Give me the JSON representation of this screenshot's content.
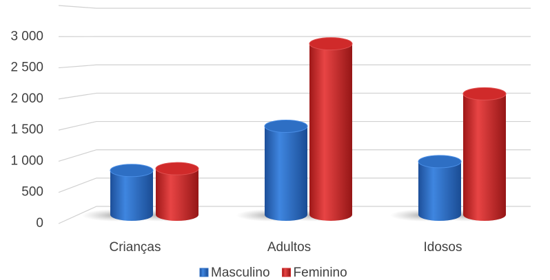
{
  "chart_data": {
    "type": "bar3d",
    "categories": [
      "Crianças",
      "Adultos",
      "Idosos"
    ],
    "series": [
      {
        "name": "Masculino",
        "color": "#2e6fc4",
        "values": [
          750,
          1500,
          900
        ]
      },
      {
        "name": "Feminino",
        "color": "#d02a2a",
        "values": [
          780,
          2900,
          2050
        ]
      }
    ],
    "ylim": [
      0,
      3500
    ],
    "yticks": [
      0,
      500,
      {
        "value": 1000,
        "label": "1 000"
      },
      {
        "value": 1500,
        "label": "1 500"
      },
      {
        "value": 2000,
        "label": "2 000"
      },
      {
        "value": 2500,
        "label": "2 500"
      },
      {
        "value": 3000,
        "label": "3 000"
      }
    ],
    "grid": true,
    "legend": "bottom"
  }
}
